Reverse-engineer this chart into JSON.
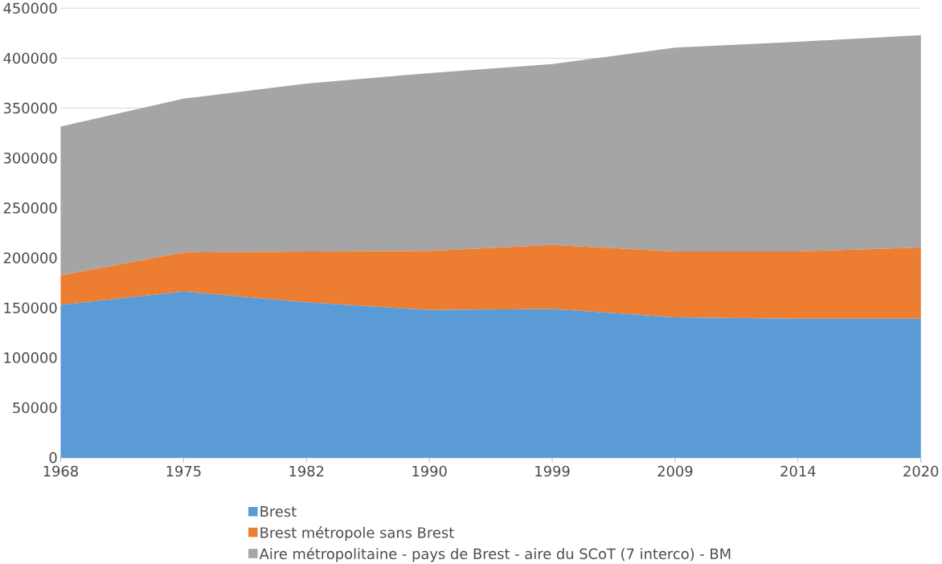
{
  "chart_data": {
    "type": "area",
    "stacked": true,
    "categories": [
      "1968",
      "1975",
      "1982",
      "1990",
      "1999",
      "2009",
      "2014",
      "2020"
    ],
    "series": [
      {
        "name": "Brest",
        "color": "#5b9bd5",
        "values": [
          153000,
          166500,
          155500,
          148000,
          149000,
          140500,
          139000,
          139000
        ]
      },
      {
        "name": "Brest métropole sans Brest",
        "color": "#ed7d31",
        "values": [
          29500,
          39000,
          51000,
          59000,
          64000,
          66000,
          67500,
          71500
        ]
      },
      {
        "name": "Aire métropolitaine - pays de Brest - aire du SCoT (7 interco) - BM",
        "color": "#a5a5a5",
        "values": [
          149000,
          154000,
          168000,
          178000,
          181000,
          204000,
          210000,
          212500
        ]
      }
    ],
    "ylim": [
      0,
      450000
    ],
    "yticks": [
      0,
      50000,
      100000,
      150000,
      200000,
      250000,
      300000,
      350000,
      400000,
      450000
    ],
    "grid": "y",
    "legend": "bottom"
  }
}
